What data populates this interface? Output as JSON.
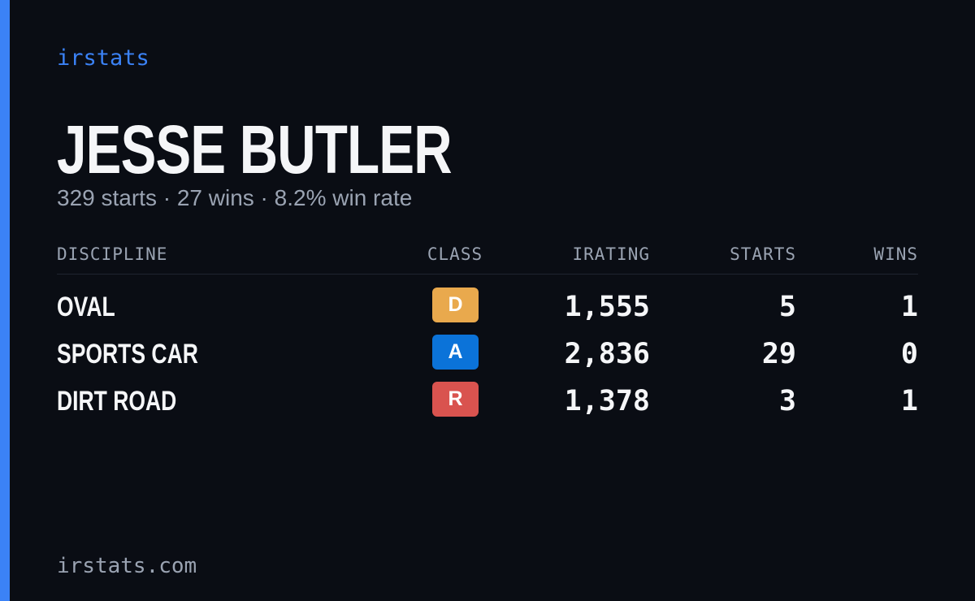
{
  "brand": "irstats",
  "player": {
    "name": "JESSE BUTLER",
    "summary": "329 starts · 27 wins · 8.2% win rate"
  },
  "table": {
    "headers": [
      "DISCIPLINE",
      "CLASS",
      "IRATING",
      "STARTS",
      "WINS"
    ],
    "rows": [
      {
        "discipline": "OVAL",
        "class": "D",
        "color": "#e9a94d",
        "irating": "1,555",
        "starts": "5",
        "wins": "1"
      },
      {
        "discipline": "SPORTS CAR",
        "class": "A",
        "color": "#0b73d9",
        "irating": "2,836",
        "starts": "29",
        "wins": "0"
      },
      {
        "discipline": "DIRT ROAD",
        "class": "R",
        "color": "#d9534f",
        "irating": "1,378",
        "starts": "3",
        "wins": "1"
      }
    ]
  },
  "footer": "irstats.com"
}
